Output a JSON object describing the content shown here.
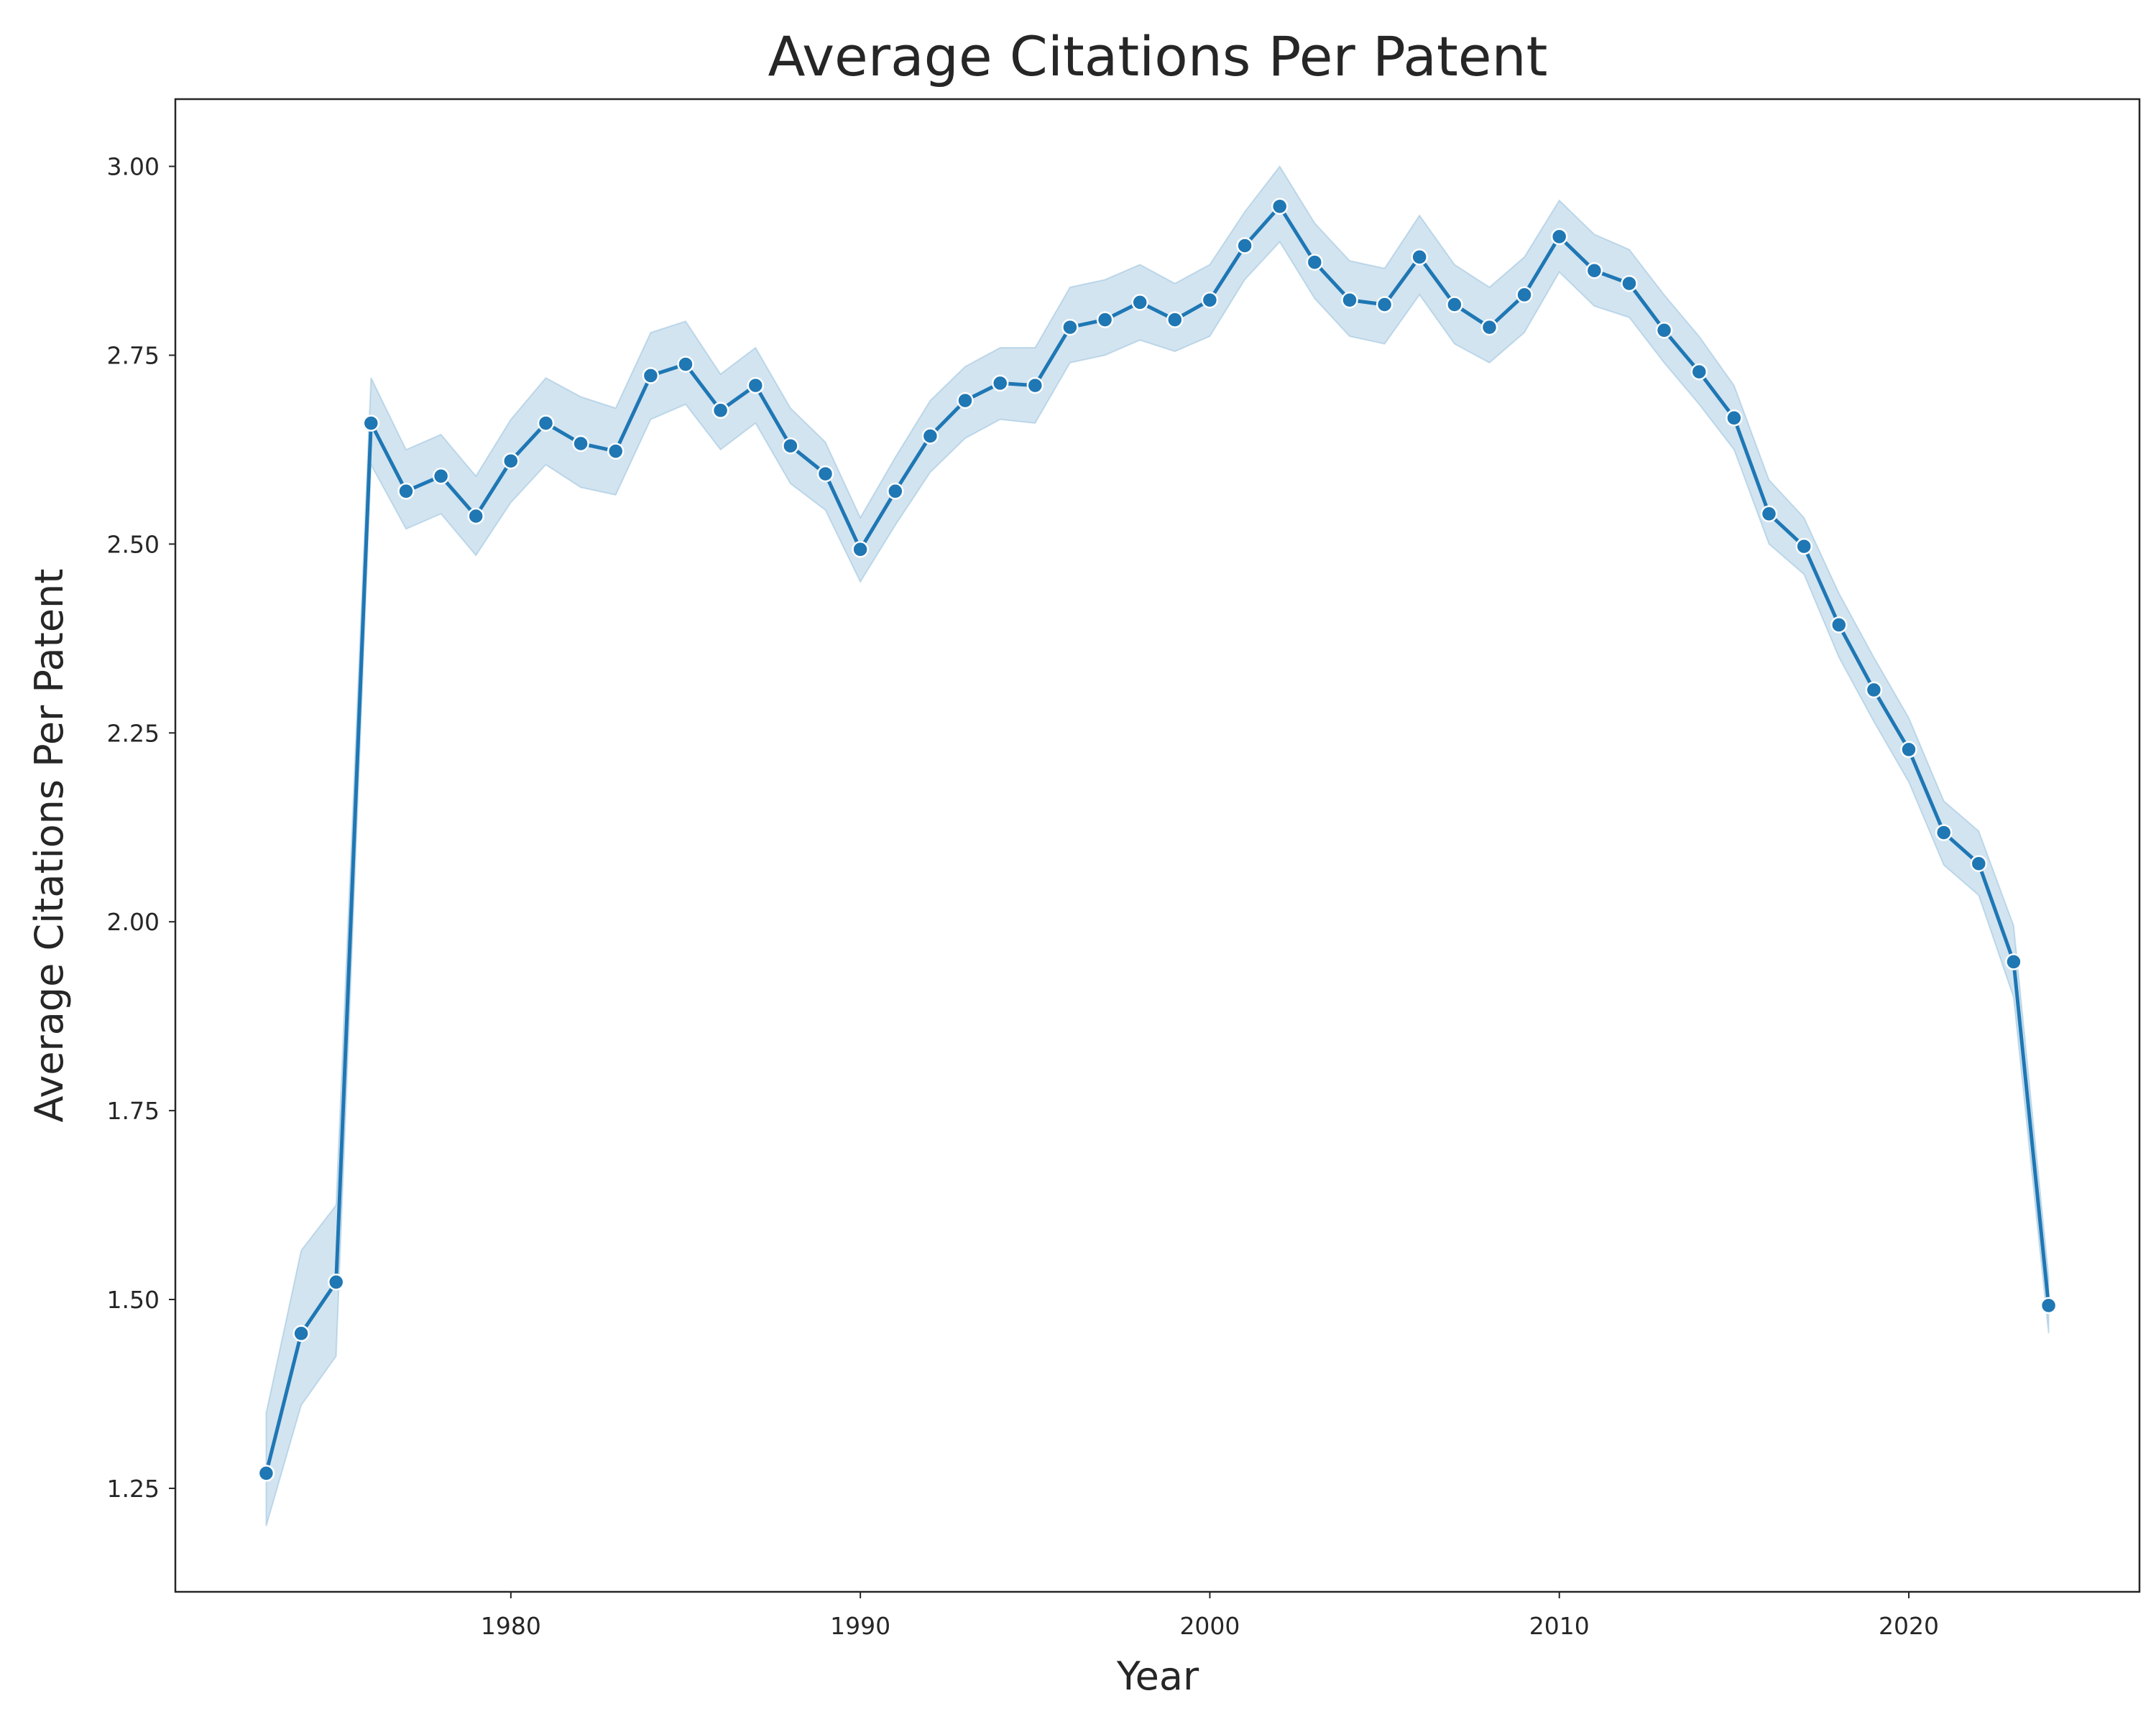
{
  "chart_data": {
    "type": "line",
    "title": "Average Citations Per Patent",
    "xlabel": "Year",
    "ylabel": "Average Citations Per Patent",
    "xlim": [
      1970.4,
      2026.6
    ],
    "ylim": [
      1.113,
      3.089
    ],
    "xticks": [
      1980,
      1990,
      2000,
      2010,
      2020
    ],
    "yticks": [
      1.25,
      1.5,
      1.75,
      2.0,
      2.25,
      2.5,
      2.75,
      3.0
    ],
    "ytick_labels": [
      "1.25",
      "1.50",
      "1.75",
      "2.00",
      "2.25",
      "2.50",
      "2.75",
      "3.00"
    ],
    "grid": false,
    "line_color": "#1f77b4",
    "band_color": "#1f77b4",
    "series": [
      {
        "x": [
          1973,
          1974,
          1975,
          1976,
          1977,
          1978,
          1979,
          1980,
          1981,
          1982,
          1983,
          1984,
          1985,
          1986,
          1987,
          1988,
          1989,
          1990,
          1991,
          1992,
          1993,
          1994,
          1995,
          1996,
          1997,
          1998,
          1999,
          2000,
          2001,
          2002,
          2003,
          2004,
          2005,
          2006,
          2007,
          2008,
          2009,
          2010,
          2011,
          2012,
          2013,
          2014,
          2015,
          2016,
          2017,
          2018,
          2019,
          2020,
          2021,
          2022,
          2023,
          2024
        ],
        "values": [
          1.27,
          1.455,
          1.523,
          2.66,
          2.57,
          2.59,
          2.537,
          2.61,
          2.66,
          2.633,
          2.623,
          2.723,
          2.738,
          2.677,
          2.71,
          2.63,
          2.593,
          2.493,
          2.57,
          2.643,
          2.69,
          2.713,
          2.71,
          2.787,
          2.797,
          2.82,
          2.797,
          2.823,
          2.895,
          2.947,
          2.873,
          2.823,
          2.817,
          2.88,
          2.817,
          2.787,
          2.83,
          2.907,
          2.862,
          2.845,
          2.783,
          2.728,
          2.667,
          2.54,
          2.497,
          2.393,
          2.307,
          2.228,
          2.118,
          2.077,
          1.947,
          1.492
        ],
        "ci_lower": [
          1.2,
          1.36,
          1.425,
          2.605,
          2.52,
          2.54,
          2.485,
          2.555,
          2.605,
          2.575,
          2.565,
          2.665,
          2.685,
          2.625,
          2.66,
          2.58,
          2.545,
          2.45,
          2.525,
          2.595,
          2.64,
          2.665,
          2.66,
          2.74,
          2.75,
          2.77,
          2.755,
          2.775,
          2.85,
          2.9,
          2.825,
          2.775,
          2.765,
          2.83,
          2.765,
          2.74,
          2.78,
          2.86,
          2.815,
          2.8,
          2.74,
          2.685,
          2.625,
          2.5,
          2.46,
          2.35,
          2.265,
          2.185,
          2.075,
          2.035,
          1.9,
          1.455
        ],
        "ci_upper": [
          1.35,
          1.565,
          1.625,
          2.72,
          2.625,
          2.645,
          2.59,
          2.665,
          2.72,
          2.695,
          2.68,
          2.78,
          2.795,
          2.725,
          2.76,
          2.68,
          2.635,
          2.535,
          2.615,
          2.69,
          2.735,
          2.76,
          2.76,
          2.84,
          2.85,
          2.87,
          2.845,
          2.87,
          2.94,
          3.0,
          2.925,
          2.875,
          2.865,
          2.935,
          2.87,
          2.84,
          2.88,
          2.955,
          2.91,
          2.89,
          2.83,
          2.775,
          2.71,
          2.585,
          2.535,
          2.435,
          2.35,
          2.27,
          2.16,
          2.12,
          1.995,
          1.53
        ]
      }
    ]
  }
}
